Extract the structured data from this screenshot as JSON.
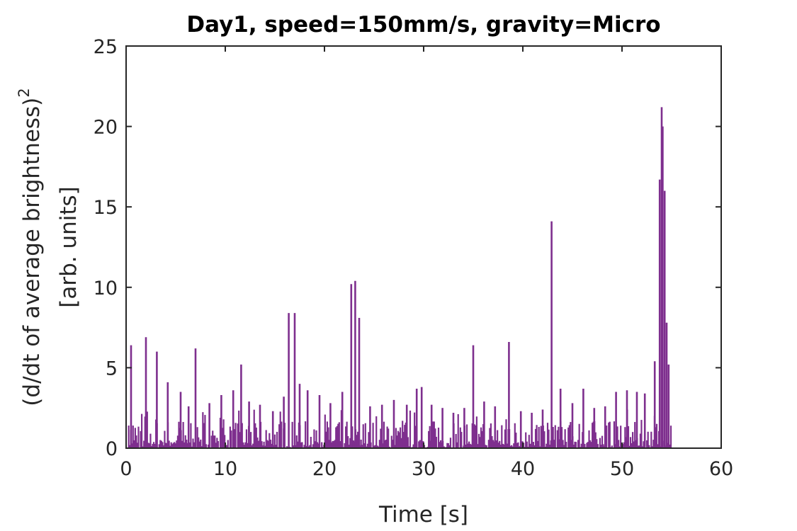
{
  "chart_data": {
    "type": "bar",
    "title": "Day1, speed=150mm/s, gravity=Micro",
    "xlabel": "Time [s]",
    "ylabel_line1": "(d/dt of average brightness)",
    "ylabel_superscript": "2",
    "ylabel_line2": "[arb. units]",
    "xlim": [
      0,
      60
    ],
    "ylim": [
      0,
      25
    ],
    "xticks": [
      0,
      10,
      20,
      30,
      40,
      50,
      60
    ],
    "yticks": [
      0,
      5,
      10,
      15,
      20,
      25
    ],
    "grid": false,
    "series": [
      {
        "color": "#7e2f8e",
        "x": [
          0.5,
          2.0,
          3.1,
          4.2,
          5.5,
          6.3,
          7.0,
          8.4,
          9.6,
          10.8,
          11.6,
          12.4,
          13.5,
          14.8,
          15.9,
          16.4,
          17.0,
          17.5,
          18.3,
          19.5,
          20.6,
          21.8,
          22.7,
          23.1,
          23.5,
          24.6,
          25.8,
          27.0,
          28.3,
          29.3,
          29.8,
          30.8,
          31.9,
          33.0,
          34.1,
          35.0,
          36.1,
          37.2,
          38.6,
          39.8,
          40.9,
          42.0,
          42.9,
          43.8,
          45.0,
          46.1,
          47.2,
          48.3,
          49.4,
          50.5,
          51.5,
          52.3,
          53.3,
          53.8,
          54.0,
          54.1,
          54.3,
          54.5,
          54.7
        ],
        "values": [
          6.4,
          6.9,
          6.0,
          4.1,
          3.5,
          2.6,
          6.2,
          2.8,
          3.3,
          3.6,
          5.2,
          2.9,
          2.7,
          2.3,
          3.2,
          8.4,
          8.4,
          4.0,
          3.6,
          3.3,
          2.8,
          3.5,
          10.2,
          10.4,
          8.1,
          2.6,
          2.7,
          3.0,
          2.7,
          3.7,
          3.8,
          2.7,
          2.5,
          2.2,
          2.5,
          6.4,
          2.9,
          2.6,
          6.6,
          2.3,
          2.2,
          2.4,
          14.1,
          3.7,
          2.8,
          3.7,
          2.5,
          2.6,
          3.5,
          3.6,
          3.5,
          3.4,
          5.4,
          16.7,
          21.2,
          20.0,
          16.0,
          7.8,
          5.2
        ],
        "baseline_noise": "dense low-amplitude bars (0–2) from 0 to 55 s"
      }
    ]
  }
}
